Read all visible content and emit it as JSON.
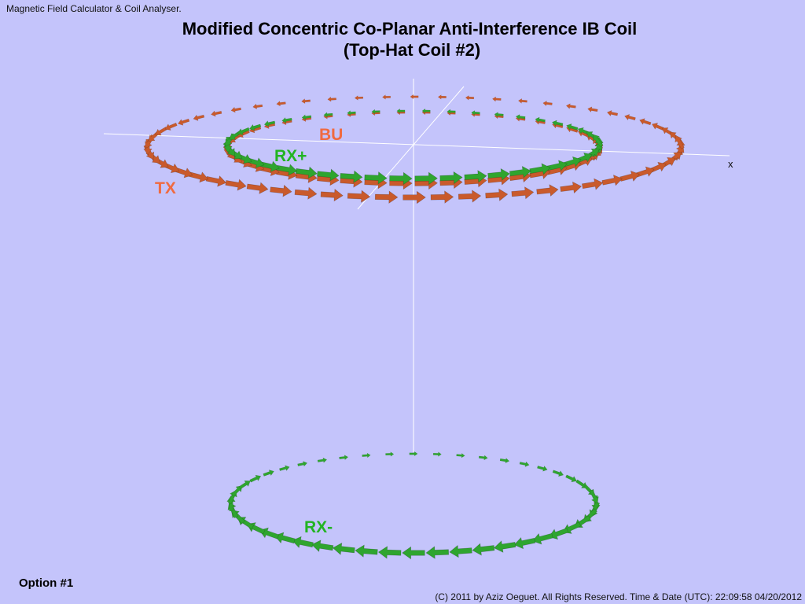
{
  "app_title": "Magnetic Field Calculator & Coil Analyser.",
  "title": [
    "Modified Concentric Co-Planar Anti-Interference IB Coil",
    "(Top-Hat Coil #2)"
  ],
  "axis_label": "x",
  "coil_labels": {
    "tx": "TX",
    "bu": "BU",
    "rx_plus": "RX+",
    "rx_minus": "RX-"
  },
  "option": "Option #1",
  "footer": "(C) 2011 by Aziz Oeguet. All Rights Reserved.  Time & Date (UTC): 22:09:58  04/20/2012"
}
